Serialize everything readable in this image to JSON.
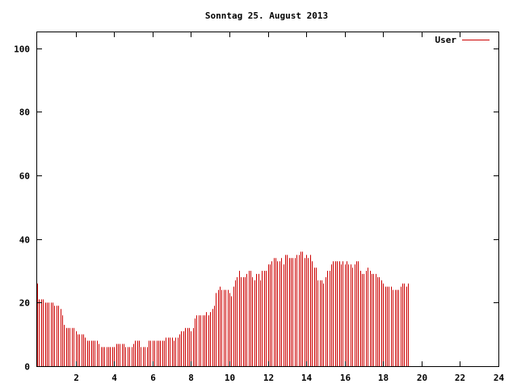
{
  "chart_data": {
    "type": "bar",
    "title": "Sonntag 25. August 2013",
    "xlabel": "",
    "ylabel": "",
    "xlim": [
      0,
      24
    ],
    "ylim": [
      0,
      105
    ],
    "xticks": [
      2,
      4,
      6,
      8,
      10,
      12,
      14,
      16,
      18,
      20,
      22,
      24
    ],
    "yticks": [
      0,
      20,
      40,
      60,
      80,
      100
    ],
    "legend_position": "top-right",
    "grid": false,
    "bar_color": "#cc0000",
    "series": [
      {
        "name": "User",
        "color": "#cc0000",
        "interval_hours": 0.1,
        "values": [
          26,
          21,
          21,
          21,
          20,
          20,
          20,
          20,
          20,
          19,
          19,
          19,
          18,
          16,
          13,
          12,
          12,
          12,
          12,
          12,
          11,
          10,
          10,
          10,
          10,
          9,
          8,
          8,
          8,
          8,
          8,
          8,
          7,
          6,
          6,
          6,
          6,
          6,
          6,
          6,
          6,
          7,
          7,
          7,
          7,
          7,
          6,
          6,
          6,
          6,
          7,
          8,
          8,
          8,
          6,
          6,
          6,
          6,
          8,
          8,
          8,
          8,
          8,
          8,
          8,
          8,
          8,
          9,
          9,
          9,
          9,
          8,
          9,
          9,
          10,
          11,
          11,
          12,
          12,
          12,
          11,
          12,
          15,
          16,
          16,
          16,
          16,
          16,
          17,
          16,
          17,
          18,
          19,
          23,
          24,
          25,
          24,
          24,
          24,
          24,
          23,
          22,
          25,
          27,
          28,
          30,
          28,
          28,
          28,
          29,
          30,
          30,
          28,
          27,
          29,
          29,
          27,
          30,
          30,
          30,
          32,
          32,
          33,
          34,
          34,
          33,
          33,
          34,
          32,
          35,
          35,
          34,
          34,
          34,
          34,
          35,
          35,
          36,
          36,
          34,
          35,
          34,
          35,
          33,
          31,
          31,
          27,
          27,
          27,
          26,
          28,
          30,
          30,
          32,
          33,
          33,
          33,
          33,
          32,
          33,
          32,
          33,
          32,
          32,
          31,
          32,
          33,
          33,
          30,
          29,
          29,
          30,
          31,
          30,
          29,
          29,
          29,
          28,
          28,
          27,
          26,
          25,
          25,
          25,
          25,
          24,
          24,
          24,
          24,
          25,
          26,
          26,
          25,
          26
        ]
      }
    ]
  }
}
